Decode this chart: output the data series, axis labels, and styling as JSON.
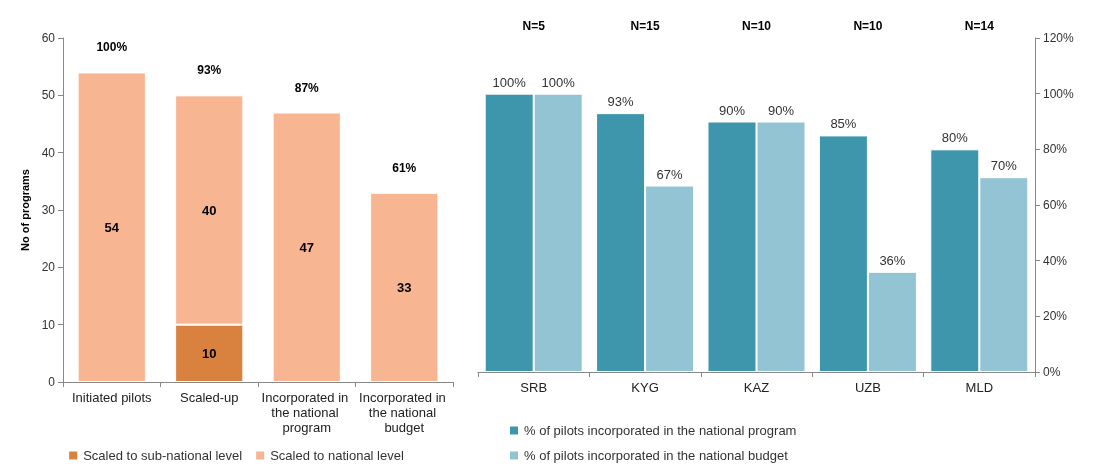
{
  "chart_data": [
    {
      "type": "bar",
      "ylabel": "No of programs",
      "categories": [
        "Initiated pilots",
        "Scaled-up",
        "Incorporated in the national program",
        "Incorporated in the national budget"
      ],
      "stacked": true,
      "series": [
        {
          "name": "Scaled to sub-national level",
          "color": "#d9823f",
          "values": [
            null,
            10,
            null,
            null
          ]
        },
        {
          "name": "Scaled to national level",
          "color": "#f8b592",
          "values": [
            54,
            40,
            47,
            33
          ]
        }
      ],
      "data_labels": true,
      "annotations": [
        "100%",
        "93%",
        "87%",
        "61%"
      ],
      "ylim": [
        0,
        60
      ],
      "yticks": [
        0,
        10,
        20,
        30,
        40,
        50,
        60
      ],
      "grid": false,
      "legend": "bottom"
    },
    {
      "type": "bar",
      "categories": [
        "SRB",
        "KYG",
        "KAZ",
        "UZB",
        "MLD"
      ],
      "series": [
        {
          "name": "% of pilots incorporated in the national program",
          "color": "#3d96ac",
          "axis": "y2",
          "values": [
            100,
            93,
            90,
            85,
            80
          ],
          "value_labels": [
            "100%",
            "93%",
            "90%",
            "85%",
            "80%"
          ]
        },
        {
          "name": "% of pilots incorporated in the national budget",
          "color": "#92c4d4",
          "axis": "y2",
          "values": [
            100,
            67,
            90,
            36,
            70
          ],
          "value_labels": [
            "100%",
            "67%",
            "90%",
            "36%",
            "70%"
          ]
        }
      ],
      "annotations": [
        "N=5",
        "N=15",
        "N=10",
        "N=10",
        "N=14"
      ],
      "y2lim": [
        0,
        120
      ],
      "y2ticks": [
        {
          "value": 0,
          "label": "0%"
        },
        {
          "value": 20,
          "label": "20%"
        },
        {
          "value": 40,
          "label": "40%"
        },
        {
          "value": 60,
          "label": "60%"
        },
        {
          "value": 80,
          "label": "80%"
        },
        {
          "value": 100,
          "label": "100%"
        },
        {
          "value": 120,
          "label": "120%"
        }
      ],
      "grid": false,
      "legend": "bottom"
    }
  ]
}
